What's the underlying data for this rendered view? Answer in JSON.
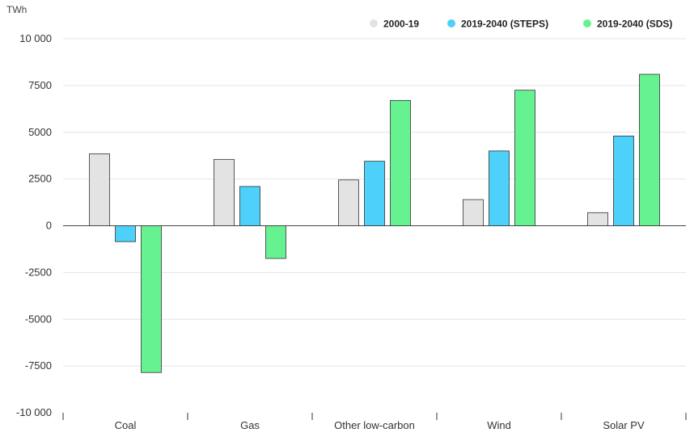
{
  "chart_data": {
    "type": "bar",
    "ylabel": "TWh",
    "ylim": [
      -10000,
      10000
    ],
    "yticks": [
      10000,
      7500,
      5000,
      2500,
      0,
      -2500,
      -5000,
      -7500,
      -10000
    ],
    "ytick_labels": [
      "10 000",
      "7500",
      "5000",
      "2500",
      "0",
      "-2500",
      "-5000",
      "-7500",
      "-10 000"
    ],
    "grid": true,
    "legend_position": "top-right",
    "categories": [
      "Coal",
      "Gas",
      "Other low-carbon",
      "Wind",
      "Solar PV"
    ],
    "series": [
      {
        "name": "2000-19",
        "color": "#e3e3e3",
        "values": [
          3850,
          3550,
          2450,
          1400,
          700
        ]
      },
      {
        "name": "2019-2040 (STEPS)",
        "color": "#4dd0f9",
        "values": [
          -850,
          2100,
          3450,
          4000,
          4800
        ]
      },
      {
        "name": "2019-2040 (SDS)",
        "color": "#66f291",
        "values": [
          -7850,
          -1750,
          6700,
          7250,
          8100
        ]
      }
    ]
  }
}
